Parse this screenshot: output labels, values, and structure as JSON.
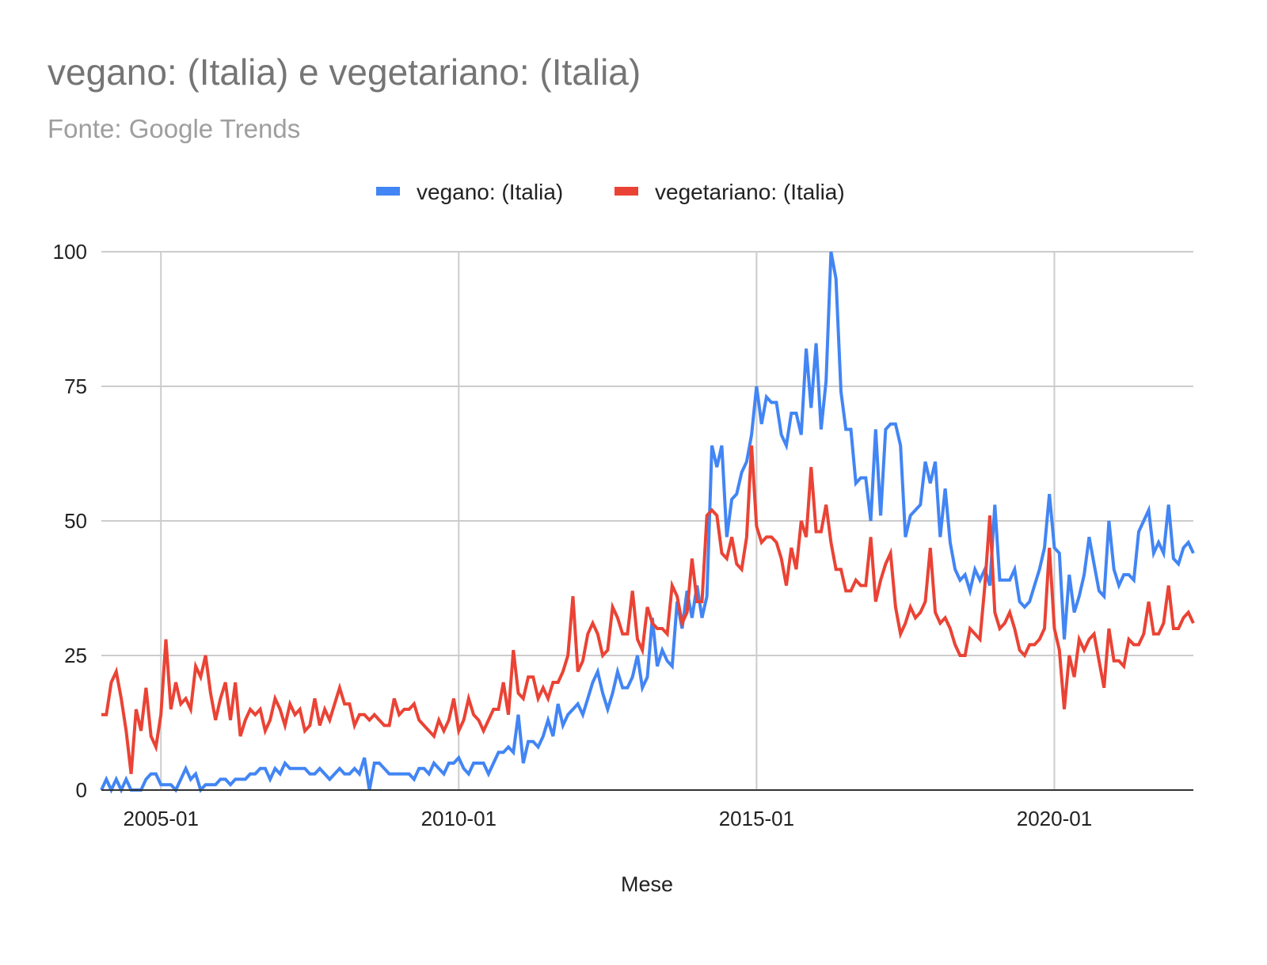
{
  "chart_data": {
    "type": "line",
    "title": "vegano: (Italia) e vegetariano: (Italia)",
    "subtitle": "Fonte: Google Trends",
    "xlabel": "Mese",
    "ylabel": "",
    "x_start": "2004-01",
    "x_end": "2022-05",
    "x_interval": "month",
    "x_ticks": [
      "2005-01",
      "2010-01",
      "2015-01",
      "2020-01"
    ],
    "y_ticks": [
      0,
      25,
      50,
      75,
      100
    ],
    "ylim": [
      0,
      100
    ],
    "grid": true,
    "legend_position": "top",
    "series": [
      {
        "name": "vegano: (Italia)",
        "color": "#4285f4",
        "values": [
          0,
          2,
          0,
          2,
          0,
          2,
          0,
          0,
          0,
          2,
          3,
          3,
          1,
          1,
          1,
          0,
          2,
          4,
          2,
          3,
          0,
          1,
          1,
          1,
          2,
          2,
          1,
          2,
          2,
          2,
          3,
          3,
          4,
          4,
          2,
          4,
          3,
          5,
          4,
          4,
          4,
          4,
          3,
          3,
          4,
          3,
          2,
          3,
          4,
          3,
          3,
          4,
          3,
          6,
          0,
          5,
          5,
          4,
          3,
          3,
          3,
          3,
          3,
          2,
          4,
          4,
          3,
          5,
          4,
          3,
          5,
          5,
          6,
          4,
          3,
          5,
          5,
          5,
          3,
          5,
          7,
          7,
          8,
          7,
          14,
          5,
          9,
          9,
          8,
          10,
          13,
          10,
          16,
          12,
          14,
          15,
          16,
          14,
          17,
          20,
          22,
          18,
          15,
          18,
          22,
          19,
          19,
          21,
          25,
          19,
          21,
          32,
          23,
          26,
          24,
          23,
          35,
          30,
          37,
          32,
          38,
          32,
          36,
          64,
          60,
          64,
          47,
          54,
          55,
          59,
          61,
          66,
          75,
          68,
          73,
          72,
          72,
          66,
          64,
          70,
          70,
          66,
          82,
          71,
          83,
          67,
          76,
          100,
          95,
          74,
          67,
          67,
          57,
          58,
          58,
          50,
          67,
          51,
          67,
          68,
          68,
          64,
          47,
          51,
          52,
          53,
          61,
          57,
          61,
          47,
          56,
          46,
          41,
          39,
          40,
          37,
          41,
          39,
          41,
          38,
          53,
          39,
          39,
          39,
          41,
          35,
          34,
          35,
          38,
          41,
          45,
          55,
          45,
          44,
          28,
          40,
          33,
          36,
          40,
          47,
          42,
          37,
          36,
          50,
          41,
          38,
          40,
          40,
          39,
          48,
          50,
          52,
          44,
          46,
          44,
          53,
          43,
          42,
          45,
          46,
          44
        ]
      },
      {
        "name": "vegetariano: (Italia)",
        "color": "#ea4335",
        "values": [
          14,
          14,
          20,
          22,
          17,
          11,
          3,
          15,
          11,
          19,
          10,
          8,
          14,
          28,
          15,
          20,
          16,
          17,
          15,
          23,
          21,
          25,
          18,
          13,
          17,
          20,
          13,
          20,
          10,
          13,
          15,
          14,
          15,
          11,
          13,
          17,
          15,
          12,
          16,
          14,
          15,
          11,
          12,
          17,
          12,
          15,
          13,
          16,
          19,
          16,
          16,
          12,
          14,
          14,
          13,
          14,
          13,
          12,
          12,
          17,
          14,
          15,
          15,
          16,
          13,
          12,
          11,
          10,
          13,
          11,
          13,
          17,
          11,
          13,
          17,
          14,
          13,
          11,
          13,
          15,
          15,
          20,
          14,
          26,
          18,
          17,
          21,
          21,
          17,
          19,
          17,
          20,
          20,
          22,
          25,
          36,
          22,
          24,
          29,
          31,
          29,
          25,
          26,
          34,
          32,
          29,
          29,
          37,
          28,
          26,
          34,
          31,
          30,
          30,
          29,
          38,
          36,
          31,
          33,
          43,
          35,
          35,
          51,
          52,
          51,
          44,
          43,
          47,
          42,
          41,
          47,
          64,
          49,
          46,
          47,
          47,
          46,
          43,
          38,
          45,
          41,
          50,
          47,
          60,
          48,
          48,
          53,
          46,
          41,
          41,
          37,
          37,
          39,
          38,
          38,
          47,
          35,
          39,
          42,
          44,
          34,
          29,
          31,
          34,
          32,
          33,
          35,
          45,
          33,
          31,
          32,
          30,
          27,
          25,
          25,
          30,
          29,
          28,
          38,
          51,
          33,
          30,
          31,
          33,
          30,
          26,
          25,
          27,
          27,
          28,
          30,
          45,
          30,
          26,
          15,
          25,
          21,
          28,
          26,
          28,
          29,
          24,
          19,
          30,
          24,
          24,
          23,
          28,
          27,
          27,
          29,
          35,
          29,
          29,
          31,
          38,
          30,
          30,
          32,
          33,
          31
        ]
      }
    ]
  }
}
